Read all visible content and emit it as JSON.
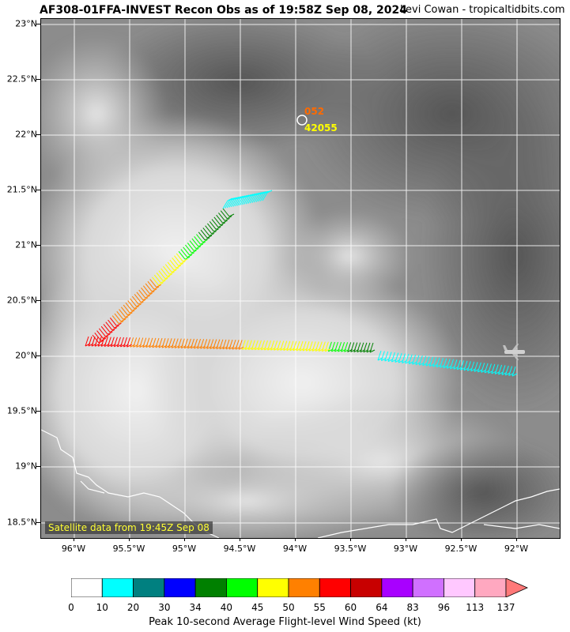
{
  "header": {
    "title": "AF308-01FFA-INVEST Recon Obs as of 19:58Z Sep 08, 2024",
    "credit": "Levi Cowan - tropicaltidbits.com"
  },
  "map": {
    "lat_labels": [
      "23°N",
      "22.5°N",
      "22°N",
      "21.5°N",
      "21°N",
      "20.5°N",
      "20°N",
      "19.5°N",
      "19°N",
      "18.5°N"
    ],
    "lon_labels": [
      "96°W",
      "95.5°W",
      "95°W",
      "94.5°W",
      "94°W",
      "93.5°W",
      "93°W",
      "92.5°W",
      "92°W"
    ],
    "satellite_note": "Satellite data from 19:45Z Sep 08",
    "buoy": {
      "speed": "052",
      "id": "42055",
      "speed_color": "#ff6a00",
      "id_color": "#ffff00"
    },
    "icons": [
      "buoy-circle-icon",
      "aircraft-icon"
    ]
  },
  "colorbar": {
    "title": "Peak 10-second Average Flight-level Wind Speed (kt)",
    "tick_labels": [
      "0",
      "10",
      "20",
      "30",
      "34",
      "40",
      "45",
      "50",
      "55",
      "60",
      "64",
      "83",
      "96",
      "113",
      "137"
    ],
    "colors": [
      "#ffffff",
      "#00ffff",
      "#008080",
      "#0000ff",
      "#008000",
      "#00ff00",
      "#ffff00",
      "#ff8000",
      "#ff0000",
      "#c80000",
      "#a800ff",
      "#d070ff",
      "#ffc8ff",
      "#ffa8c0"
    ],
    "extend_color": "#ff7878"
  }
}
